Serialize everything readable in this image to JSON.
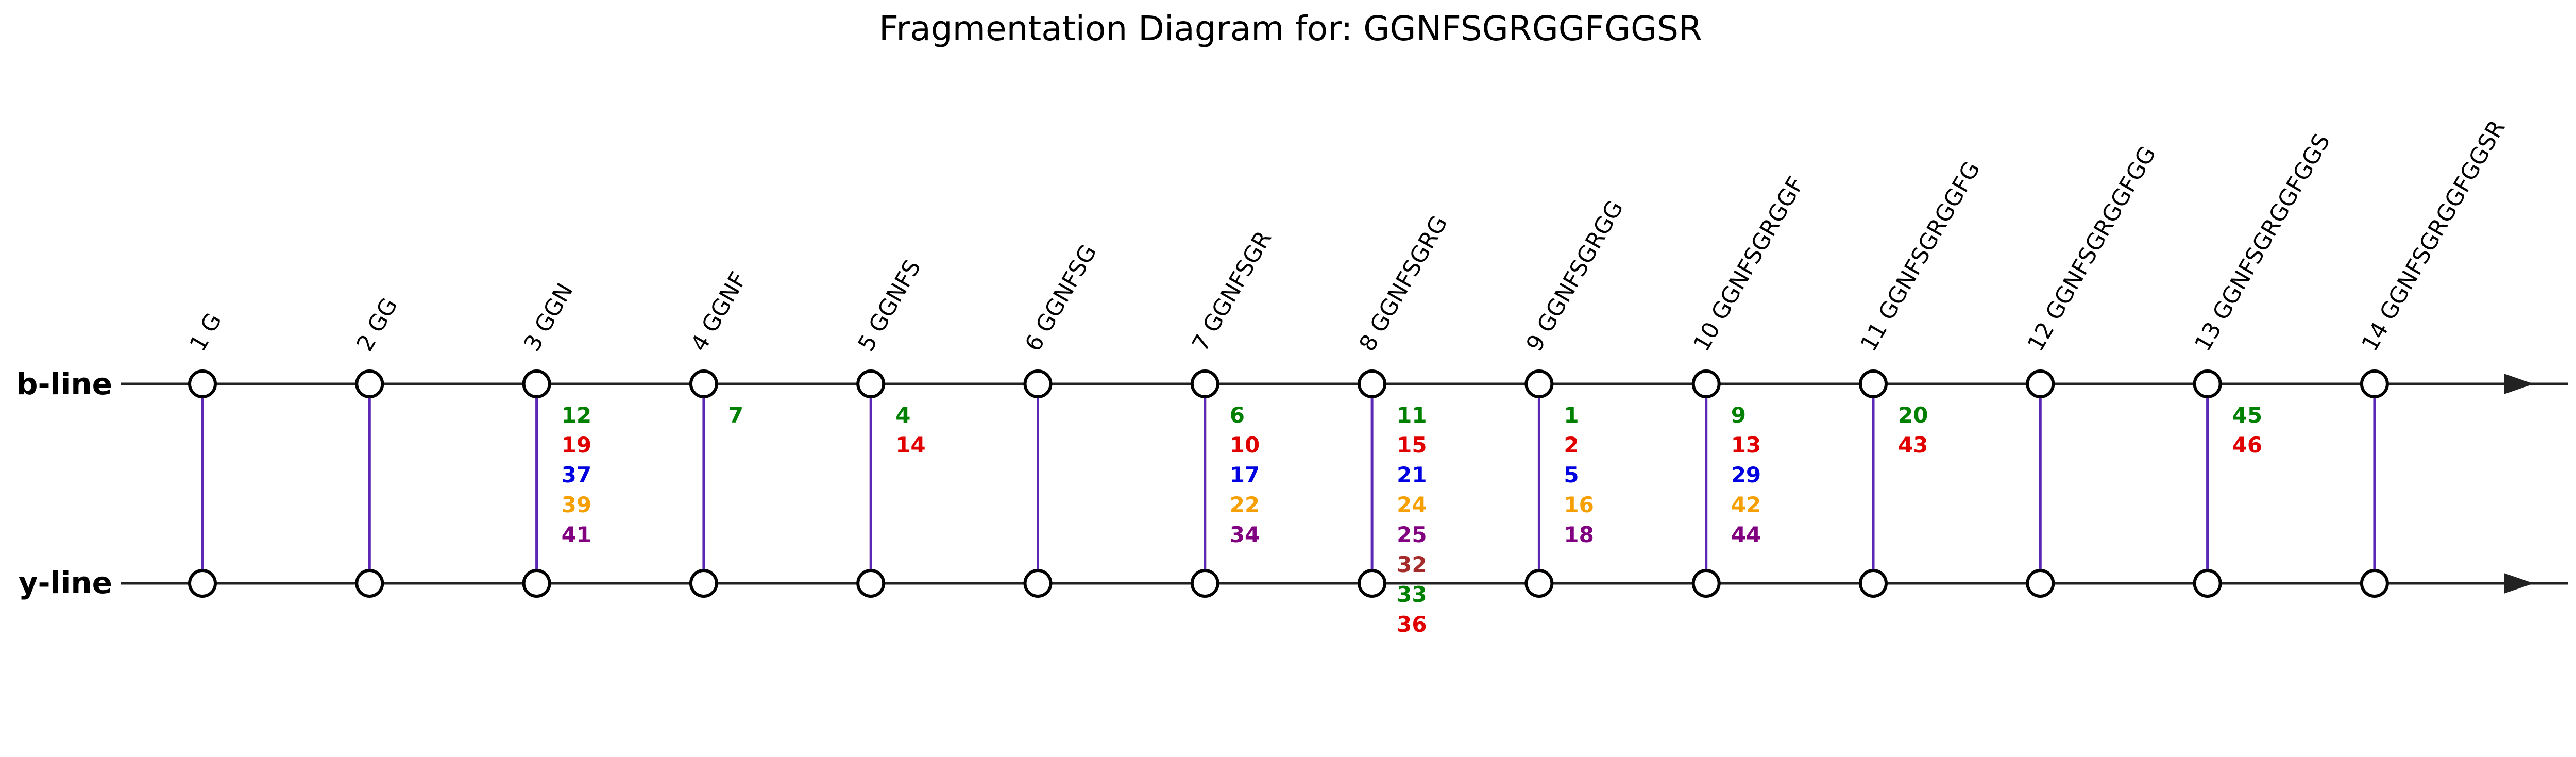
{
  "title": "Fragmentation Diagram for: GGNFSGRGGFGGSR",
  "rows": {
    "b_line": "b-line",
    "y_line": "y-line"
  },
  "colors": {
    "axis": "#222222",
    "connector": "#5a28b4",
    "node_fill": "#ffffff",
    "node_stroke": "#000000",
    "palette": [
      "#008000",
      "#e00000",
      "#0000e0",
      "#f5a000",
      "#800080",
      "#a52a2a"
    ]
  },
  "positions": [
    {
      "label": "1 G",
      "ions": [],
      "below": []
    },
    {
      "label": "2 GG",
      "ions": [],
      "below": []
    },
    {
      "label": "3 GGN",
      "ions": [
        "12",
        "19",
        "37",
        "39",
        "41"
      ],
      "below": []
    },
    {
      "label": "4 GGNF",
      "ions": [
        "7"
      ],
      "below": []
    },
    {
      "label": "5 GGNFS",
      "ions": [
        "4",
        "14"
      ],
      "below": []
    },
    {
      "label": "6 GGNFSG",
      "ions": [],
      "below": []
    },
    {
      "label": "7 GGNFSGR",
      "ions": [
        "6",
        "10",
        "17",
        "22",
        "34"
      ],
      "below": []
    },
    {
      "label": "8 GGNFSGRG",
      "ions": [
        "11",
        "15",
        "21",
        "24",
        "25",
        "32"
      ],
      "below": [
        "33",
        "36"
      ]
    },
    {
      "label": "9 GGNFSGRGG",
      "ions": [
        "1",
        "2",
        "5",
        "16",
        "18"
      ],
      "below": []
    },
    {
      "label": "10 GGNFSGRGGF",
      "ions": [
        "9",
        "13",
        "29",
        "42",
        "44"
      ],
      "below": []
    },
    {
      "label": "11 GGNFSGRGGFG",
      "ions": [
        "20",
        "43"
      ],
      "below": []
    },
    {
      "label": "12 GGNFSGRGGFGG",
      "ions": [],
      "below": []
    },
    {
      "label": "13 GGNFSGRGGFGGS",
      "ions": [
        "45",
        "46"
      ],
      "below": []
    },
    {
      "label": "14 GGNFSGRGGFGGSR",
      "ions": [],
      "below": []
    }
  ]
}
